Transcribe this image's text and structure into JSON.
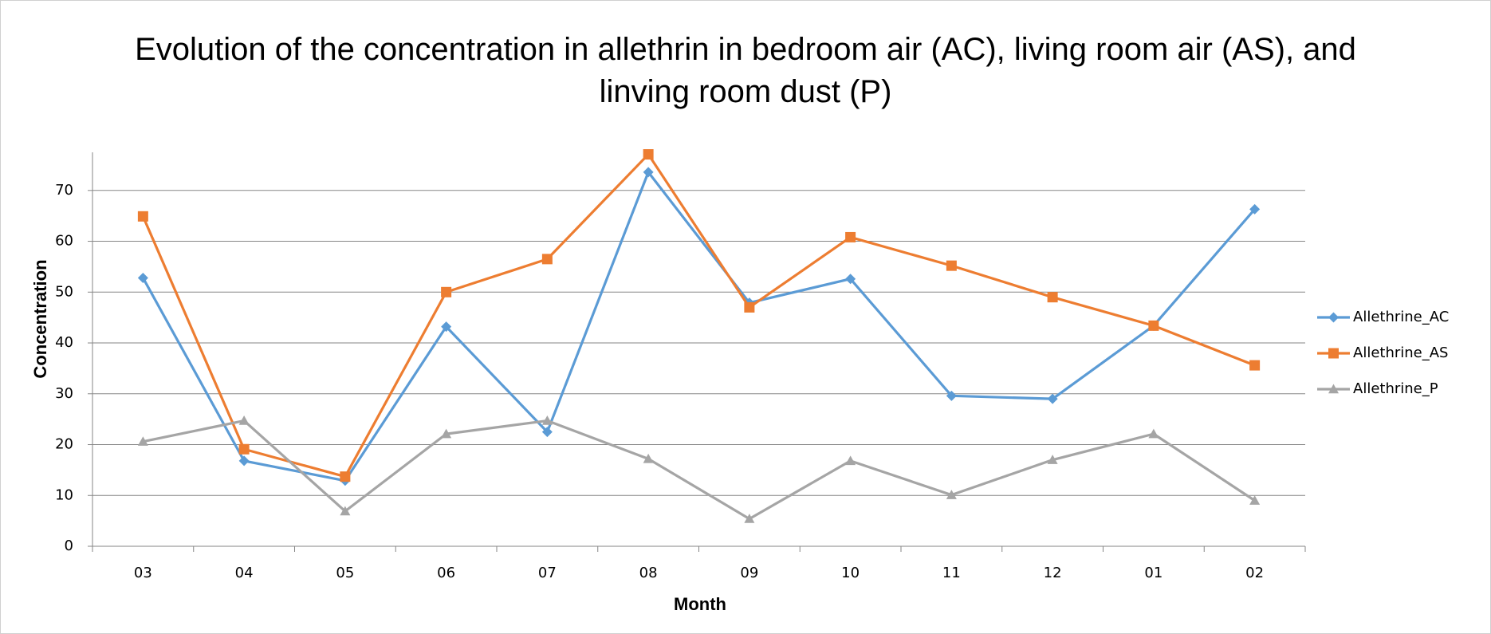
{
  "chart_data": {
    "type": "line",
    "title": "Evolution of the concentration in allethrin in bedroom air (AC), living room air (AS), and linving room dust (P)",
    "x_label": "Month",
    "y_label": "Concentration",
    "categories": [
      "03",
      "04",
      "05",
      "06",
      "07",
      "08",
      "09",
      "10",
      "11",
      "12",
      "01",
      "02"
    ],
    "series": [
      {
        "name": "Allethrine_AC",
        "color": "#5b9bd5",
        "marker": "diamond",
        "values": [
          52.8,
          16.8,
          12.9,
          43.2,
          22.5,
          73.6,
          47.9,
          52.6,
          29.6,
          29.0,
          43.4,
          66.3
        ]
      },
      {
        "name": "Allethrine_AS",
        "color": "#ed7d31",
        "marker": "square",
        "values": [
          64.9,
          19.1,
          13.7,
          50.0,
          56.5,
          77.1,
          47.0,
          60.8,
          55.2,
          49.0,
          43.4,
          35.6
        ]
      },
      {
        "name": "Allethrine_P",
        "color": "#a5a5a5",
        "marker": "triangle",
        "values": [
          20.6,
          24.7,
          6.9,
          22.1,
          24.7,
          17.2,
          5.4,
          16.8,
          10.1,
          17.0,
          22.1,
          9.0
        ]
      }
    ],
    "ylim": [
      0,
      77.5
    ],
    "yticks": [
      0,
      10,
      20,
      30,
      40,
      50,
      60,
      70
    ],
    "grid": true,
    "legend": "right"
  }
}
